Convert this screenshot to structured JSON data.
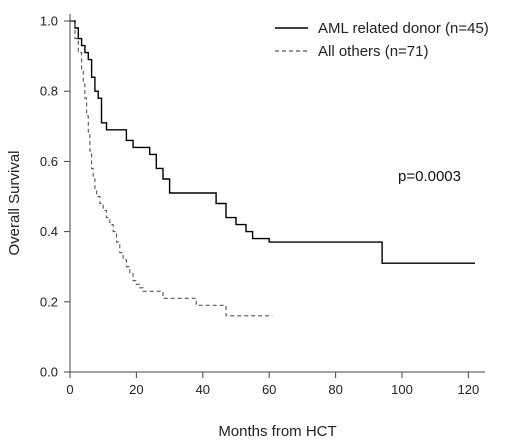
{
  "chart_data": {
    "type": "line",
    "title": "",
    "xlabel": "Months from HCT",
    "ylabel": "Overall Survival",
    "xlim": [
      0,
      125
    ],
    "ylim": [
      0,
      1.02
    ],
    "x_ticks": [
      0,
      20,
      40,
      60,
      80,
      100,
      120
    ],
    "y_ticks": [
      0.0,
      0.2,
      0.4,
      0.6,
      0.8,
      1.0
    ],
    "x_tick_labels": [
      "0",
      "20",
      "40",
      "60",
      "80",
      "100",
      "120"
    ],
    "y_tick_labels": [
      "0.0",
      "0.2",
      "0.4",
      "0.6",
      "0.8",
      "1.0"
    ],
    "grid": false,
    "legend_position": "top-right",
    "annotation": "p=0.0003",
    "series": [
      {
        "name": "AML related donor (n=45)",
        "style": "solid",
        "color": "#000000",
        "x": [
          0,
          1.5,
          2.5,
          3.5,
          4.5,
          5.5,
          6.5,
          7.5,
          8.5,
          9.5,
          11,
          17,
          19,
          24,
          26,
          28,
          30,
          44,
          47,
          50,
          53,
          55,
          60,
          94,
          122
        ],
        "y": [
          1.0,
          0.98,
          0.95,
          0.93,
          0.91,
          0.89,
          0.84,
          0.8,
          0.78,
          0.71,
          0.69,
          0.66,
          0.64,
          0.62,
          0.58,
          0.55,
          0.51,
          0.48,
          0.44,
          0.42,
          0.4,
          0.38,
          0.37,
          0.31,
          0.31
        ]
      },
      {
        "name": "All others (n=71)",
        "style": "dashed",
        "color": "#555555",
        "x": [
          0,
          1.5,
          2.5,
          3.5,
          4,
          4.5,
          5,
          5.5,
          6,
          6.5,
          7,
          7.5,
          8,
          9,
          10,
          11,
          12,
          13,
          14,
          15,
          16,
          17,
          18,
          19,
          20,
          21,
          22,
          28,
          31,
          38,
          40,
          47,
          61
        ],
        "y": [
          1.0,
          0.95,
          0.91,
          0.86,
          0.82,
          0.78,
          0.73,
          0.68,
          0.63,
          0.58,
          0.55,
          0.52,
          0.5,
          0.48,
          0.46,
          0.44,
          0.42,
          0.4,
          0.37,
          0.34,
          0.32,
          0.3,
          0.28,
          0.26,
          0.25,
          0.24,
          0.23,
          0.21,
          0.21,
          0.19,
          0.19,
          0.16,
          0.16
        ]
      }
    ]
  }
}
